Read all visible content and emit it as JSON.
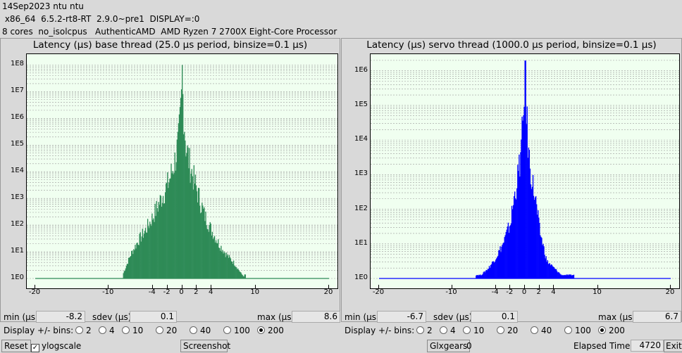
{
  "header": {
    "line1": "14Sep2023 ntu ntu",
    "line2": " x86_64  6.5.2-rt8-RT  2.9.0~pre1  DISPLAY=:0",
    "line3": "8 cores  no_isolcpus   AuthenticAMD  AMD Ryzen 7 2700X Eight-Core Processor"
  },
  "labels": {
    "min": "min (µs)",
    "sdev": "sdev (µs)",
    "max": "max (µs)",
    "display_bins": "Display +/- bins:",
    "reset": "Reset",
    "ylogscale": "ylogscale",
    "screenshot": "Screenshot",
    "glxgears": "Glxgears",
    "glxgears_value": "0",
    "elapsed_label": "Elapsed Time:",
    "elapsed_value": "4720",
    "exit": "Exit"
  },
  "bin_options": [
    "2",
    "4",
    "10",
    "20",
    "40",
    "100",
    "200"
  ],
  "selected_bins": "200",
  "ylogscale_checked": true,
  "panels": [
    {
      "title": "Latency (µs) base thread (25.0 µs period, binsize=0.1 µs)",
      "min": "-8.2",
      "sdev": "0.1",
      "max": "8.6",
      "color": "#2e8b57"
    },
    {
      "title": "Latency (µs) servo thread (1000.0 µs period, binsize=0.1 µs)",
      "min": "-6.7",
      "sdev": "0.1",
      "max": "6.7",
      "color": "#0000ff"
    }
  ],
  "chart_data": [
    {
      "type": "bar",
      "title": "Latency (µs) base thread (25.0 µs period, binsize=0.1 µs)",
      "xlim": [
        -20,
        20
      ],
      "x_ticks": [
        "-20",
        "-10",
        "-4",
        "-2",
        "0",
        "2",
        "4",
        "10",
        "20"
      ],
      "y_scale": "log",
      "y_ticks": [
        "1E0",
        "1E1",
        "1E2",
        "1E3",
        "1E4",
        "1E5",
        "1E6",
        "1E7",
        "1E8"
      ],
      "ylim_exp": [
        0,
        8.3
      ],
      "series": [
        {
          "x": [
            -8.0,
            -7.0,
            -6.0,
            -5.0,
            -4.0,
            -3.0,
            -2.0,
            -1.5,
            -1.0,
            -0.5,
            -0.3,
            -0.1,
            0.0,
            0.1,
            0.3,
            0.5,
            1.0,
            1.5,
            2.0,
            3.0,
            4.0,
            5.0,
            6.0,
            7.0,
            8.0,
            8.6
          ],
          "log10_counts": [
            0.2,
            0.9,
            1.4,
            1.8,
            2.3,
            2.9,
            3.5,
            3.9,
            4.4,
            5.1,
            5.8,
            6.8,
            8.0,
            6.8,
            5.8,
            5.0,
            4.3,
            3.8,
            3.3,
            2.4,
            1.8,
            1.3,
            0.9,
            0.6,
            0.2,
            0.0
          ]
        }
      ]
    },
    {
      "type": "bar",
      "title": "Latency (µs) servo thread (1000.0 µs period, binsize=0.1 µs)",
      "xlim": [
        -20,
        20
      ],
      "x_ticks": [
        "-20",
        "-10",
        "-4",
        "-2",
        "0",
        "2",
        "4",
        "10",
        "20"
      ],
      "y_scale": "log",
      "y_ticks": [
        "1E0",
        "1E1",
        "1E2",
        "1E3",
        "1E4",
        "1E5",
        "1E6"
      ],
      "ylim_exp": [
        0,
        6.4
      ],
      "series": [
        {
          "x": [
            -6.7,
            -6.0,
            -5.0,
            -4.0,
            -3.0,
            -2.0,
            -1.5,
            -1.0,
            -0.5,
            -0.2,
            0.0,
            0.2,
            0.5,
            1.0,
            1.5,
            2.0,
            3.0,
            4.0,
            5.0,
            6.0,
            6.7
          ],
          "log10_counts": [
            0.1,
            0.1,
            0.3,
            0.6,
            1.0,
            1.6,
            2.3,
            2.9,
            3.7,
            4.8,
            6.3,
            4.8,
            3.6,
            2.8,
            2.2,
            1.4,
            0.5,
            0.3,
            0.1,
            0.1,
            0.1
          ]
        }
      ]
    }
  ]
}
